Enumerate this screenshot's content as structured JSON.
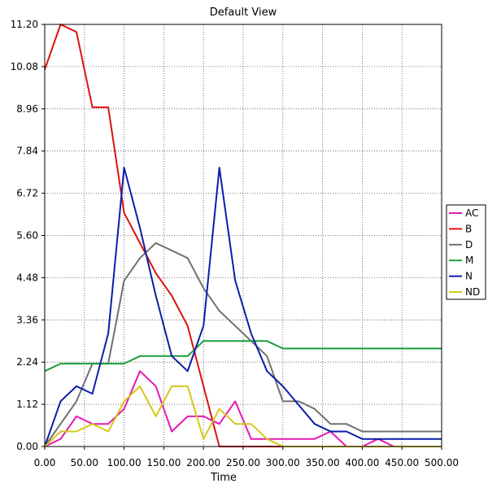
{
  "chart_data": {
    "type": "line",
    "title": "Default View",
    "xlabel": "Time",
    "ylabel": "",
    "xlim": [
      0,
      500
    ],
    "ylim": [
      0,
      11.2
    ],
    "x_ticks": [
      "0.00",
      "50.00",
      "100.00",
      "150.00",
      "200.00",
      "250.00",
      "300.00",
      "350.00",
      "400.00",
      "450.00",
      "500.00"
    ],
    "y_ticks": [
      "0.00",
      "1.12",
      "2.24",
      "3.36",
      "4.48",
      "5.60",
      "6.72",
      "7.84",
      "8.96",
      "10.08",
      "11.20"
    ],
    "grid": true,
    "legend_position": "right",
    "series": [
      {
        "name": "AC",
        "color": "#e619b4",
        "x": [
          0,
          20,
          40,
          60,
          80,
          100,
          120,
          140,
          160,
          180,
          200,
          220,
          240,
          260,
          280,
          300,
          320,
          340,
          360,
          380,
          400,
          420,
          440,
          460,
          480,
          500
        ],
        "y": [
          0,
          0.2,
          0.8,
          0.6,
          0.6,
          1.0,
          2.0,
          1.6,
          0.4,
          0.8,
          0.8,
          0.6,
          1.2,
          0.2,
          0.2,
          0.2,
          0.2,
          0.2,
          0.4,
          0,
          0,
          0.2,
          0,
          0,
          0,
          0
        ]
      },
      {
        "name": "B",
        "color": "#dd1111",
        "x": [
          0,
          20,
          40,
          60,
          80,
          100,
          120,
          140,
          160,
          180,
          200,
          220,
          240,
          260,
          280,
          300,
          320,
          340,
          360,
          380,
          400,
          420,
          440,
          460,
          480,
          500
        ],
        "y": [
          10.0,
          11.2,
          11.0,
          9.0,
          9.0,
          6.2,
          5.4,
          4.6,
          4.0,
          3.2,
          1.6,
          0,
          0,
          0,
          0,
          0,
          0,
          0,
          0,
          0,
          0,
          0,
          0,
          0,
          0,
          0
        ]
      },
      {
        "name": "D",
        "color": "#707070",
        "x": [
          0,
          20,
          40,
          60,
          80,
          100,
          120,
          140,
          160,
          180,
          200,
          220,
          240,
          260,
          280,
          300,
          320,
          340,
          360,
          380,
          400,
          420,
          440,
          460,
          480,
          500
        ],
        "y": [
          0,
          0.6,
          1.2,
          2.2,
          2.2,
          4.4,
          5.0,
          5.4,
          5.2,
          5.0,
          4.2,
          3.6,
          3.2,
          2.8,
          2.4,
          1.2,
          1.2,
          1.0,
          0.6,
          0.6,
          0.4,
          0.4,
          0.4,
          0.4,
          0.4,
          0.4
        ]
      },
      {
        "name": "M",
        "color": "#1a9e3a",
        "x": [
          0,
          20,
          40,
          60,
          80,
          100,
          120,
          140,
          160,
          180,
          200,
          220,
          240,
          260,
          280,
          300,
          320,
          340,
          360,
          380,
          400,
          420,
          440,
          460,
          480,
          500
        ],
        "y": [
          2.0,
          2.2,
          2.2,
          2.2,
          2.2,
          2.2,
          2.4,
          2.4,
          2.4,
          2.4,
          2.8,
          2.8,
          2.8,
          2.8,
          2.8,
          2.6,
          2.6,
          2.6,
          2.6,
          2.6,
          2.6,
          2.6,
          2.6,
          2.6,
          2.6,
          2.6
        ]
      },
      {
        "name": "N",
        "color": "#0a1ea8",
        "x": [
          0,
          20,
          40,
          60,
          80,
          100,
          120,
          140,
          160,
          180,
          200,
          220,
          240,
          260,
          280,
          300,
          320,
          340,
          360,
          380,
          400,
          420,
          440,
          460,
          480,
          500
        ],
        "y": [
          0,
          1.2,
          1.6,
          1.4,
          3.0,
          7.4,
          5.8,
          4.0,
          2.4,
          2.0,
          3.2,
          7.4,
          4.4,
          3.0,
          2.0,
          1.6,
          1.1,
          0.6,
          0.4,
          0.4,
          0.2,
          0.2,
          0.2,
          0.2,
          0.2,
          0.2
        ]
      },
      {
        "name": "ND",
        "color": "#d6c81a",
        "x": [
          0,
          20,
          40,
          60,
          80,
          100,
          120,
          140,
          160,
          180,
          200,
          220,
          240,
          260,
          280,
          300,
          320,
          340,
          360,
          380,
          400,
          420,
          440,
          460,
          480,
          500
        ],
        "y": [
          0,
          0.4,
          0.4,
          0.6,
          0.4,
          1.2,
          1.6,
          0.8,
          1.6,
          1.6,
          0.2,
          1.0,
          0.6,
          0.6,
          0.2,
          0,
          0,
          0,
          0,
          0,
          0,
          0,
          0,
          0,
          0,
          0
        ]
      }
    ]
  }
}
